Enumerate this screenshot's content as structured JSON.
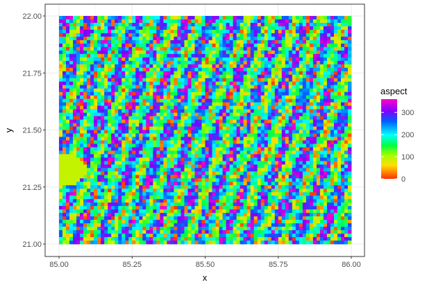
{
  "chart_data": {
    "type": "heatmap",
    "title": "",
    "xlabel": "x",
    "ylabel": "y",
    "xlim": [
      85.0,
      86.0
    ],
    "ylim": [
      21.0,
      22.0
    ],
    "x_ticks": [
      "85.00",
      "85.25",
      "85.50",
      "85.75",
      "86.00"
    ],
    "y_ticks": [
      "21.00",
      "21.25",
      "21.50",
      "21.75",
      "22.00"
    ],
    "grid": true,
    "fill_variable": "aspect",
    "fill_range": [
      0,
      360
    ],
    "colorbar_ticks": [
      "0",
      "100",
      "200",
      "300"
    ],
    "colormap": "rainbow",
    "legend_position": "right",
    "colors": {
      "panel_background": "#ffffff",
      "panel_border": "#333333",
      "grid_major": "#ebebeb"
    }
  }
}
